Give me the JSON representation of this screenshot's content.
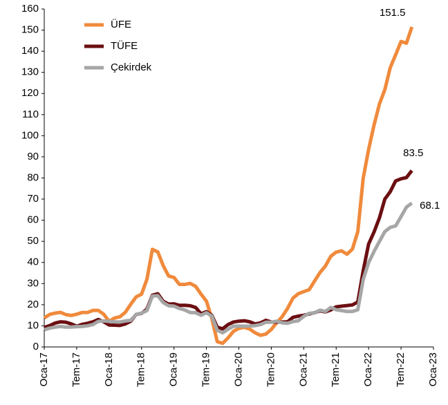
{
  "chart_data": {
    "type": "line",
    "categories": [
      "Oca-17",
      null,
      null,
      null,
      null,
      null,
      "Tem-17",
      null,
      null,
      null,
      null,
      null,
      "Oca-18",
      null,
      null,
      null,
      null,
      null,
      "Tem-18",
      null,
      null,
      null,
      null,
      null,
      "Oca-19",
      null,
      null,
      null,
      null,
      null,
      "Tem-19",
      null,
      null,
      null,
      null,
      null,
      "Oca-20",
      null,
      null,
      null,
      null,
      null,
      "Tem-20",
      null,
      null,
      null,
      null,
      null,
      "Oca-21",
      null,
      null,
      null,
      null,
      null,
      "Tem-21",
      null,
      null,
      null,
      null,
      null,
      "Oca-22",
      null,
      null,
      null,
      null,
      null,
      "Tem-22",
      null,
      null,
      null,
      null,
      null,
      "Oca-23"
    ],
    "series": [
      {
        "name": "ÜFE",
        "color": "#f08a3c",
        "values": [
          13.7,
          15.4,
          16.0,
          16.4,
          15.3,
          14.9,
          15.5,
          16.3,
          16.3,
          17.3,
          17.3,
          15.5,
          12.1,
          13.7,
          14.3,
          16.4,
          20.2,
          23.7,
          25.0,
          32.1,
          46.2,
          45.0,
          38.5,
          33.6,
          32.9,
          29.6,
          29.6,
          30.1,
          28.7,
          25.0,
          21.7,
          13.5,
          2.5,
          1.7,
          4.3,
          7.4,
          8.8,
          9.3,
          8.5,
          6.7,
          5.5,
          6.1,
          8.3,
          11.5,
          14.3,
          18.2,
          23.1,
          25.2,
          26.2,
          27.1,
          31.2,
          35.2,
          38.3,
          42.9,
          44.9,
          45.5,
          43.9,
          46.3,
          54.6,
          79.9,
          93.5,
          105.0,
          115.0,
          121.8,
          132.2,
          138.3,
          144.6,
          143.8,
          151.5,
          null,
          null,
          null,
          null
        ],
        "value_labels": [
          null,
          null,
          null,
          null,
          null,
          null,
          null,
          null,
          null,
          null,
          null,
          null,
          null,
          null,
          null,
          null,
          null,
          null,
          null,
          null,
          null,
          null,
          null,
          null,
          null,
          null,
          null,
          null,
          null,
          null,
          null,
          null,
          null,
          null,
          null,
          null,
          null,
          null,
          null,
          null,
          null,
          null,
          null,
          null,
          null,
          null,
          null,
          null,
          null,
          null,
          null,
          null,
          null,
          null,
          null,
          null,
          null,
          null,
          null,
          null,
          null,
          null,
          null,
          null,
          null,
          null,
          null,
          null,
          "151.5",
          null,
          null,
          null,
          null
        ]
      },
      {
        "name": "TÜFE",
        "color": "#6b0f12",
        "values": [
          9.2,
          10.1,
          11.3,
          11.9,
          11.7,
          10.9,
          9.8,
          10.7,
          11.2,
          11.9,
          13.0,
          11.9,
          10.4,
          10.3,
          10.2,
          10.9,
          12.2,
          15.4,
          15.9,
          17.9,
          24.5,
          25.2,
          21.6,
          20.3,
          20.4,
          19.7,
          19.7,
          19.5,
          18.7,
          15.7,
          16.7,
          15.0,
          9.3,
          8.6,
          10.6,
          11.8,
          12.2,
          12.4,
          11.9,
          10.9,
          11.4,
          12.6,
          11.8,
          11.8,
          11.8,
          11.9,
          14.0,
          14.6,
          15.0,
          15.6,
          16.2,
          17.1,
          16.6,
          17.5,
          19.0,
          19.3,
          19.6,
          19.9,
          21.3,
          36.1,
          48.7,
          54.4,
          61.1,
          70.0,
          73.5,
          78.6,
          79.6,
          80.2,
          83.5,
          null,
          null,
          null,
          null
        ],
        "value_labels": [
          null,
          null,
          null,
          null,
          null,
          null,
          null,
          null,
          null,
          null,
          null,
          null,
          null,
          null,
          null,
          null,
          null,
          null,
          null,
          null,
          null,
          null,
          null,
          null,
          null,
          null,
          null,
          null,
          null,
          null,
          null,
          null,
          null,
          null,
          null,
          null,
          null,
          null,
          null,
          null,
          null,
          null,
          null,
          null,
          null,
          null,
          null,
          null,
          null,
          null,
          null,
          null,
          null,
          null,
          null,
          null,
          null,
          null,
          null,
          null,
          null,
          null,
          null,
          null,
          null,
          null,
          null,
          null,
          "83.5",
          null,
          null,
          null,
          null
        ]
      },
      {
        "name": "Çekirdek",
        "color": "#a6a6a6",
        "values": [
          8.1,
          8.9,
          9.4,
          9.7,
          9.4,
          9.4,
          9.6,
          9.7,
          10.0,
          10.6,
          12.1,
          12.3,
          12.1,
          11.9,
          11.8,
          12.3,
          12.6,
          15.4,
          16.0,
          17.2,
          24.1,
          24.3,
          21.0,
          19.5,
          19.3,
          18.2,
          17.5,
          16.3,
          16.2,
          15.0,
          16.2,
          14.6,
          7.9,
          6.7,
          8.4,
          9.8,
          9.9,
          9.8,
          9.9,
          10.1,
          10.6,
          11.7,
          11.7,
          12.2,
          11.4,
          11.2,
          12.0,
          12.4,
          14.5,
          15.9,
          16.1,
          17.4,
          16.8,
          18.7,
          17.6,
          17.2,
          16.8,
          16.8,
          17.6,
          31.9,
          39.9,
          45.2,
          49.9,
          54.6,
          56.6,
          57.3,
          61.7,
          66.2,
          68.1,
          null,
          null,
          null,
          null
        ],
        "value_labels": [
          null,
          null,
          null,
          null,
          null,
          null,
          null,
          null,
          null,
          null,
          null,
          null,
          null,
          null,
          null,
          null,
          null,
          null,
          null,
          null,
          null,
          null,
          null,
          null,
          null,
          null,
          null,
          null,
          null,
          null,
          null,
          null,
          null,
          null,
          null,
          null,
          null,
          null,
          null,
          null,
          null,
          null,
          null,
          null,
          null,
          null,
          null,
          null,
          null,
          null,
          null,
          null,
          null,
          null,
          null,
          null,
          null,
          null,
          null,
          null,
          null,
          null,
          null,
          null,
          null,
          null,
          null,
          null,
          "68.1",
          null,
          null,
          null,
          null
        ]
      }
    ],
    "ylim": [
      0,
      160
    ],
    "yticks": [
      0,
      10,
      20,
      30,
      40,
      50,
      60,
      70,
      80,
      90,
      100,
      110,
      120,
      130,
      140,
      150,
      160
    ],
    "grid": false,
    "legend": "upper left"
  }
}
